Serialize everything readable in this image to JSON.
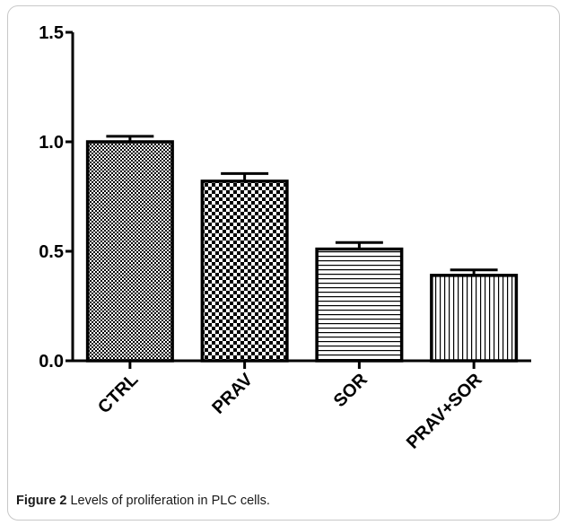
{
  "chart_data": {
    "type": "bar",
    "categories": [
      "CTRL",
      "PRAV",
      "SOR",
      "PRAV+SOR"
    ],
    "values": [
      1.0,
      0.82,
      0.51,
      0.39
    ],
    "errors": [
      0.025,
      0.035,
      0.03,
      0.025
    ],
    "fill_patterns": [
      "fine-checkerboard",
      "coarse-checkerboard",
      "horizontal-lines",
      "vertical-lines"
    ],
    "ylim": [
      0.0,
      1.5
    ],
    "yticks": [
      "0.0",
      "0.5",
      "1.0",
      "1.5"
    ],
    "ytick_values": [
      0.0,
      0.5,
      1.0,
      1.5
    ],
    "xlabel": "",
    "ylabel": "",
    "title": "",
    "grid": false,
    "bar_color": "#000000"
  },
  "caption": {
    "label": "Figure 2",
    "text": "Levels of proliferation in PLC cells",
    "period": "."
  }
}
